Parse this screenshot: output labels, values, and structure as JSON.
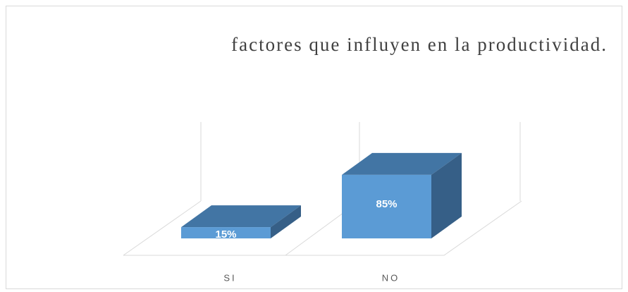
{
  "chart_data": {
    "type": "bar3d",
    "title": "factores que influyen en la productividad.",
    "categories": [
      "SI",
      "NO"
    ],
    "values": [
      15,
      85
    ],
    "value_labels": [
      "15%",
      "85%"
    ],
    "color": "#5b9bd5"
  }
}
